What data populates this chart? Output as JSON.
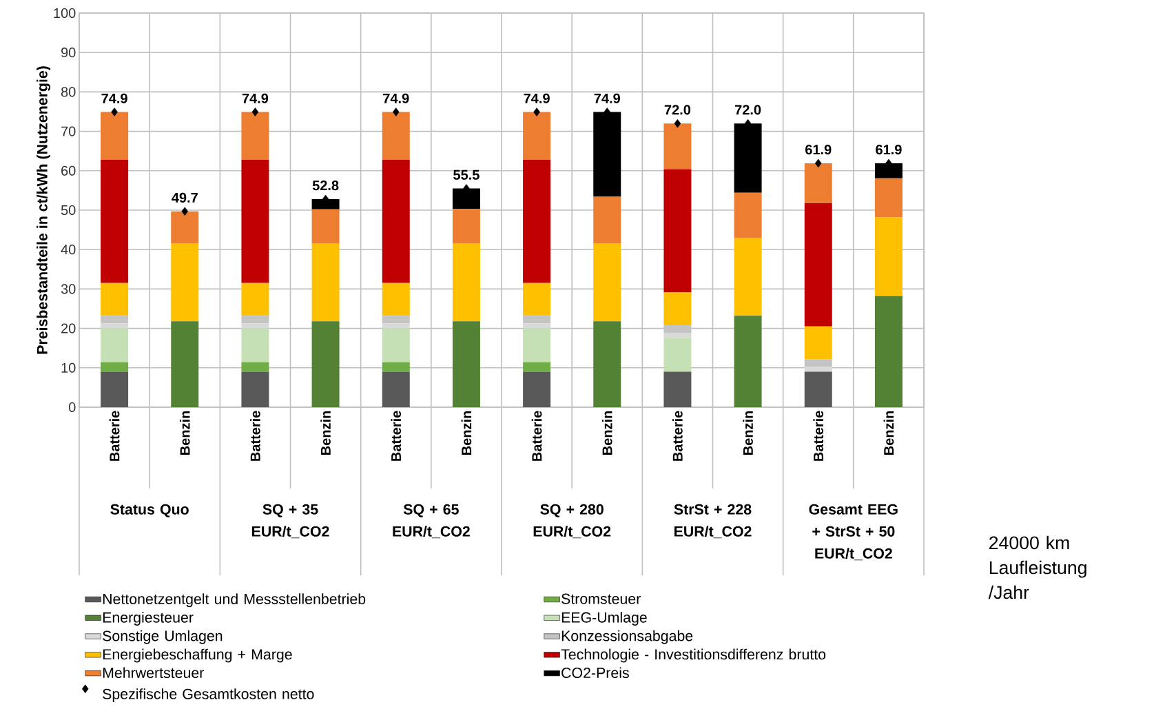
{
  "chart_data": {
    "type": "bar",
    "stacked": true,
    "ylabel": "Preisbestandteile in ct/kWh (Nutzenergie)",
    "categories": [
      "Batterie",
      "Benzin",
      "Batterie",
      "Benzin",
      "Batterie",
      "Benzin",
      "Batterie",
      "Benzin",
      "Batterie",
      "Benzin",
      "Batterie",
      "Benzin"
    ],
    "series": [
      {
        "name": "Nettonetzentgelt und Messstellenbetrieb",
        "color": "#595959",
        "values": [
          9.0,
          null,
          9.0,
          null,
          9.0,
          null,
          9.0,
          null,
          9.0,
          null,
          9.0,
          null
        ]
      },
      {
        "name": "Stromsteuer",
        "color": "#70ad47",
        "values": [
          2.4,
          null,
          2.4,
          null,
          2.4,
          null,
          2.4,
          null,
          null,
          null,
          null,
          null
        ]
      },
      {
        "name": "Energiesteuer",
        "color": "#548235",
        "values": [
          null,
          21.8,
          null,
          21.8,
          null,
          21.8,
          null,
          21.8,
          null,
          23.2,
          null,
          28.2
        ]
      },
      {
        "name": "EEG-Umlage",
        "color": "#c5e0b4",
        "values": [
          8.6,
          null,
          8.6,
          null,
          8.6,
          null,
          8.6,
          null,
          8.6,
          null,
          null,
          null
        ]
      },
      {
        "name": "Sonstige Umlagen",
        "color": "#d9d9d9",
        "values": [
          1.3,
          null,
          1.3,
          null,
          1.3,
          null,
          1.3,
          null,
          1.3,
          null,
          1.3,
          null
        ]
      },
      {
        "name": "Konzessionsabgabe",
        "color": "#c4c4c4",
        "values": [
          1.9,
          null,
          1.9,
          null,
          1.9,
          null,
          1.9,
          null,
          1.9,
          null,
          1.9,
          null
        ]
      },
      {
        "name": "Energiebeschaffung + Marge",
        "color": "#ffc000",
        "values": [
          8.3,
          19.8,
          8.3,
          19.8,
          8.3,
          19.8,
          8.3,
          19.8,
          8.3,
          19.7,
          8.3,
          20.0
        ]
      },
      {
        "name": "Technologie - Investitionsdifferenz brutto",
        "color": "#c00000",
        "values": [
          31.3,
          null,
          31.3,
          null,
          31.3,
          null,
          31.3,
          null,
          31.3,
          null,
          31.3,
          null
        ]
      },
      {
        "name": "Mehrwertsteuer",
        "color": "#ed7d31",
        "values": [
          12.1,
          8.1,
          12.1,
          8.6,
          12.1,
          8.7,
          12.1,
          11.8,
          11.6,
          11.5,
          10.1,
          9.9
        ]
      },
      {
        "name": "CO2-Preis",
        "color": "#000000",
        "values": [
          null,
          null,
          null,
          2.6,
          null,
          5.2,
          null,
          21.5,
          null,
          17.6,
          null,
          3.8
        ]
      },
      {
        "name": "Spezifische Gesamtkosten netto",
        "type": "scatter",
        "marker": "diamond",
        "color": "#000000",
        "values": [
          74.9,
          49.7,
          74.9,
          52.8,
          74.9,
          55.5,
          74.9,
          74.9,
          72.0,
          72.0,
          61.9,
          61.9
        ],
        "value_labels": [
          "74.9",
          "49.7",
          "74.9",
          "52.8",
          "74.9",
          "55.5",
          "74.9",
          "74.9",
          "72.0",
          "72.0",
          "61.9",
          "61.9"
        ]
      }
    ],
    "ylim": [
      0,
      100
    ],
    "yticks": [
      0,
      10,
      20,
      30,
      40,
      50,
      60,
      70,
      80,
      90,
      100
    ],
    "grid": true,
    "legend": "bottom",
    "annotations": [
      "Status Quo",
      "SQ + 35 EUR/t_CO2",
      "SQ + 65 EUR/t_CO2",
      "SQ + 280 EUR/t_CO2",
      "StrSt + 228 EUR/t_CO2",
      "Gesamt EEG + StrSt + 50 EUR/t_CO2",
      "24000 km Laufleistung /Jahr"
    ]
  }
}
